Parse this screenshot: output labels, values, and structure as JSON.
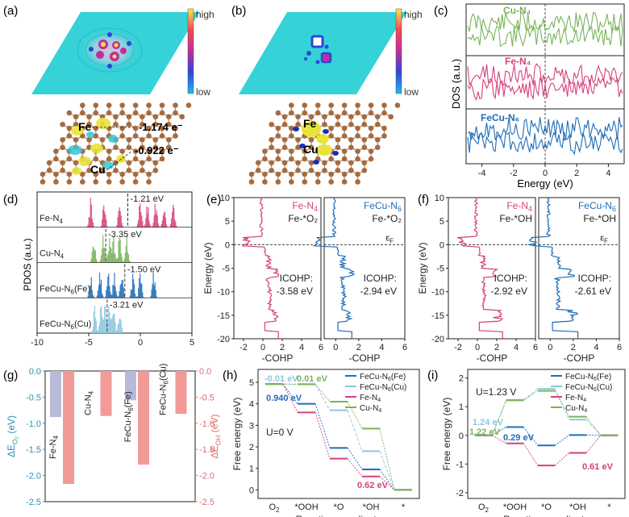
{
  "colors": {
    "feN4": "#d6417c",
    "cuN4": "#79b35b",
    "feCuN6": "#1f6db8",
    "feCuN6cu": "#8ec7df",
    "purple": "#b9b9d9",
    "salmon": "#f29a97",
    "blue_axis": "#2f8fb7",
    "red_axis": "#e06d6d",
    "map_bg": "#35d2d8",
    "carbon": "#a86a3c",
    "iso_yellow": "#e8e43a",
    "iso_cyan": "#36c7d4",
    "metal_blue": "#1a2fb0"
  },
  "panel_labels": [
    "(a)",
    "(b)",
    "(c)",
    "(d)",
    "(e)",
    "(f)",
    "(g)",
    "(h)",
    "(i)"
  ],
  "panel_a": {
    "colorbar_high": "high",
    "colorbar_low": "low",
    "atom_fe": "Fe",
    "atom_cu": "Cu",
    "charge_fe": "-1.174 e⁻",
    "charge_cu": "-0.922 e⁻"
  },
  "panel_b": {
    "colorbar_high": "high",
    "colorbar_low": "low",
    "atom_fe": "Fe",
    "atom_cu": "Cu"
  },
  "chart_data": [
    {
      "panel": "c",
      "type": "line",
      "title": "",
      "xlabel": "Energy (eV)",
      "ylabel": "DOS (a.u.)",
      "xlim": [
        -5,
        5
      ],
      "xticks": [
        -4,
        -2,
        0,
        2,
        4
      ],
      "xtick_labels": [
        "-4",
        "-2",
        "0",
        "2",
        "4"
      ],
      "series": [
        {
          "name": "Cu-N₄",
          "sub_plot": 1
        },
        {
          "name": "Fe-N₄",
          "sub_plot": 2
        },
        {
          "name": "FeCu-N₆",
          "sub_plot": 3
        }
      ]
    },
    {
      "panel": "d",
      "type": "bar",
      "xlabel": "",
      "ylabel": "PDOS (a.u.)",
      "xlim": [
        -10,
        5
      ],
      "xticks": [
        -10,
        -5,
        0,
        5
      ],
      "xtick_labels": [
        "-10",
        "-5",
        "0",
        "5"
      ],
      "series": [
        {
          "name": "Fe-N₄",
          "d_band_center": -1.21,
          "annotation": "-1.21 eV"
        },
        {
          "name": "Cu-N₄",
          "d_band_center": -3.35,
          "annotation": "-3.35 eV"
        },
        {
          "name": "FeCu-N₆(Fe)",
          "d_band_center": -1.5,
          "annotation": "-1.50 eV"
        },
        {
          "name": "FeCu-N₆(Cu)",
          "d_band_center": -3.21,
          "annotation": "-3.21 eV"
        }
      ]
    },
    {
      "panel": "e",
      "type": "line",
      "xlabel": "-COHP",
      "ylabel": "Energy (eV)",
      "ylim": [
        -20,
        10
      ],
      "yticks": [
        10,
        5,
        0,
        -5,
        -10,
        -15,
        -20
      ],
      "ytick_labels": [
        "10",
        "5",
        "0",
        "-5",
        "-10",
        "-15",
        "-20"
      ],
      "xtick_labels_left": [
        "-2",
        "0",
        "2",
        "4",
        "6"
      ],
      "xtick_labels_right": [
        "0",
        "2",
        "4",
        "6"
      ],
      "fermi_label": "ε",
      "fermi_sub": "F",
      "left": {
        "name": "Fe-N₄",
        "adsorbate": "Fe-*O₂",
        "icohp_label": "ICOHP:",
        "icohp": -3.58,
        "icohp_text": "-3.58 eV"
      },
      "right": {
        "name": "FeCu-N₆",
        "adsorbate": "Fe-*O₂",
        "icohp_label": "ICOHP:",
        "icohp": -2.94,
        "icohp_text": "-2.94 eV"
      }
    },
    {
      "panel": "f",
      "type": "line",
      "xlabel": "-COHP",
      "ylabel": "Energy (eV)",
      "ylim": [
        -20,
        10
      ],
      "yticks": [
        10,
        5,
        0,
        -5,
        -10,
        -15,
        -20
      ],
      "ytick_labels": [
        "10",
        "5",
        "0",
        "-5",
        "-10",
        "-15",
        "-20"
      ],
      "xtick_labels_left": [
        "-2",
        "0",
        "2",
        "4",
        "6"
      ],
      "xtick_labels_right": [
        "0",
        "2",
        "4",
        "6"
      ],
      "fermi_label": "ε",
      "fermi_sub": "F",
      "left": {
        "name": "Fe-N₄",
        "adsorbate": "Fe-*OH",
        "icohp_label": "ICOHP:",
        "icohp": -2.92,
        "icohp_text": "-2.92 eV"
      },
      "right": {
        "name": "FeCu-N₆",
        "adsorbate": "Fe-*OH",
        "icohp_label": "ICOHP:",
        "icohp": -2.61,
        "icohp_text": "-2.61 eV"
      }
    },
    {
      "panel": "g",
      "type": "bar",
      "ylabel_left": "ΔE_O₂ (eV)",
      "ylabel_left_main": "ΔE",
      "ylabel_left_sub": "O₂",
      "ylabel_left_unit": " (eV)",
      "ylabel_right_main": "ΔE",
      "ylabel_right_sub": "OH",
      "ylabel_right_unit": " (eV)",
      "ylim": [
        -2.5,
        0
      ],
      "yticks": [
        0.0,
        -0.5,
        -1.0,
        -1.5,
        -2.0,
        -2.5
      ],
      "ytick_labels": [
        "0.0",
        "-0.5",
        "-1.0",
        "-1.5",
        "-2.0",
        "-2.5"
      ],
      "categories": [
        "Fe-N₄",
        "Cu-N₄",
        "FeCu-N₆(Fe)",
        "FeCu-N₆(Cu)"
      ],
      "series": [
        {
          "name": "ΔE_O2",
          "values": [
            -0.88,
            null,
            -0.56,
            null
          ]
        },
        {
          "name": "ΔE_OH",
          "values": [
            -2.16,
            -0.86,
            -1.79,
            -0.82
          ]
        }
      ]
    },
    {
      "panel": "h",
      "type": "line",
      "xlabel": "Reaction coordinate",
      "ylabel": "Free energy (eV)",
      "ylim": [
        -0.4,
        5.6
      ],
      "yticks": [
        0,
        1,
        2,
        3,
        4,
        5
      ],
      "ytick_labels": [
        "0",
        "1",
        "2",
        "3",
        "4",
        "5"
      ],
      "categories": [
        "O₂",
        "*OOH",
        "*O",
        "*OH",
        "*"
      ],
      "condition": "U=0 V",
      "series": [
        {
          "name": "FeCu-N₆(Fe)",
          "values": [
            4.92,
            4.0,
            1.95,
            0.95,
            0
          ]
        },
        {
          "name": "FeCu-N₆(Cu)",
          "values": [
            4.92,
            4.91,
            3.7,
            1.8,
            0
          ]
        },
        {
          "name": "Fe-N₄",
          "values": [
            4.92,
            3.6,
            1.45,
            0.62,
            0
          ]
        },
        {
          "name": "Cu-N₄",
          "values": [
            4.92,
            4.91,
            4.1,
            2.85,
            0
          ]
        }
      ],
      "annotations": [
        "-0.01 eV",
        "0.01 eV",
        "0.940 eV",
        "0.62 eV"
      ]
    },
    {
      "panel": "i",
      "type": "line",
      "xlabel": "Reaction coordinate",
      "ylabel": "Free energy (eV)",
      "ylim": [
        -2.2,
        2.3
      ],
      "yticks": [
        -2,
        -1,
        0,
        1,
        2
      ],
      "ytick_labels": [
        "-2",
        "-1",
        "0",
        "1",
        "2"
      ],
      "categories": [
        "O₂",
        "*OOH",
        "*O",
        "*OH",
        "*"
      ],
      "condition": "U=1.23 V",
      "series": [
        {
          "name": "FeCu-N₆(Fe)",
          "values": [
            0,
            0.29,
            -0.35,
            0.01,
            0
          ]
        },
        {
          "name": "FeCu-N₆(Cu)",
          "values": [
            0,
            1.24,
            1.62,
            0.55,
            0
          ]
        },
        {
          "name": "Fe-N₄",
          "values": [
            0,
            -0.28,
            -1.05,
            -0.61,
            0
          ]
        },
        {
          "name": "Cu-N₄",
          "values": [
            0,
            1.22,
            1.55,
            0.65,
            0
          ]
        }
      ],
      "annotations": [
        "1.24 eV",
        "1.22 eV",
        "0.29 eV",
        "0.61 eV"
      ]
    }
  ]
}
